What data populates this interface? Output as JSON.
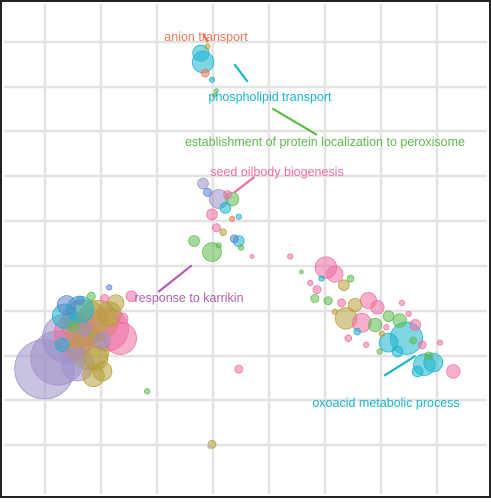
{
  "chart_data": {
    "type": "scatter",
    "title": "",
    "xlabel": "",
    "ylabel": "",
    "grid": true,
    "legend": "none",
    "xlim": [
      0,
      100
    ],
    "ylim": [
      0,
      100
    ],
    "palette": {
      "orange": "#F0785A",
      "pink": "#EE6FA4",
      "cyan": "#19B5CD",
      "green": "#5DBB4C",
      "olive": "#B69E3A",
      "purple": "#9E8FC9",
      "blue": "#5A7FCF",
      "gray": "#BDBDBD"
    },
    "annotations": [
      {
        "text": "anion transport",
        "color": "#F0785A",
        "x": 40.5,
        "y": 97.0,
        "lx": 41.5,
        "ly": 95.0
      },
      {
        "text": "phospholipid transport",
        "color": "#19B5CD",
        "x": 50.5,
        "y": 86.0,
        "lx": 47.5,
        "ly": 90.0
      },
      {
        "text": "establishment of protein localization to peroxisome",
        "color": "#5DBB4C",
        "x": 66.0,
        "y": 74.0,
        "lx": 56.0,
        "ly": 80.0
      },
      {
        "text": "seed oilbody biogenesis",
        "color": "#EE6FA4",
        "x": 52.0,
        "y": 64.5,
        "lx": 47.5,
        "ly": 61.0
      },
      {
        "text": "response to karrikin",
        "color": "#B05FB0",
        "x": 38.0,
        "y": 44.5,
        "lx": 30.5,
        "ly": 38.5
      },
      {
        "text": "oxoacid metabolic process",
        "color": "#19B5CD",
        "x": 81.0,
        "y": 19.5,
        "lx": 88.0,
        "ly": 24.0
      }
    ],
    "points": [
      {
        "x": 5.0,
        "y": 21.0,
        "size": 22,
        "group": "purple"
      },
      {
        "x": 8.0,
        "y": 23.5,
        "size": 20,
        "group": "purple"
      },
      {
        "x": 10.0,
        "y": 28.0,
        "size": 18,
        "group": "purple"
      },
      {
        "x": 12.0,
        "y": 29.0,
        "size": 16,
        "group": "pink"
      },
      {
        "x": 14.0,
        "y": 31.5,
        "size": 17,
        "group": "olive"
      },
      {
        "x": 17.0,
        "y": 32.0,
        "size": 15,
        "group": "olive"
      },
      {
        "x": 19.0,
        "y": 30.0,
        "size": 16,
        "group": "pink"
      },
      {
        "x": 22.0,
        "y": 28.0,
        "size": 12,
        "group": "pink"
      },
      {
        "x": 15.0,
        "y": 25.5,
        "size": 15,
        "group": "olive"
      },
      {
        "x": 12.5,
        "y": 22.0,
        "size": 12,
        "group": "purple"
      },
      {
        "x": 16.5,
        "y": 23.5,
        "size": 9,
        "group": "olive"
      },
      {
        "x": 16.0,
        "y": 19.5,
        "size": 8,
        "group": "olive"
      },
      {
        "x": 18.0,
        "y": 20.5,
        "size": 7,
        "group": "olive"
      },
      {
        "x": 13.0,
        "y": 34.5,
        "size": 10,
        "group": "cyan"
      },
      {
        "x": 10.0,
        "y": 35.5,
        "size": 7,
        "group": "blue"
      },
      {
        "x": 9.5,
        "y": 33.0,
        "size": 9,
        "group": "cyan"
      },
      {
        "x": 19.5,
        "y": 33.5,
        "size": 9,
        "group": "olive"
      },
      {
        "x": 21.0,
        "y": 36.0,
        "size": 6,
        "group": "olive"
      },
      {
        "x": 24.5,
        "y": 37.5,
        "size": 4,
        "group": "pink"
      },
      {
        "x": 22.5,
        "y": 32.5,
        "size": 4,
        "group": "pink"
      },
      {
        "x": 15.5,
        "y": 37.5,
        "size": 3,
        "group": "green"
      },
      {
        "x": 18.5,
        "y": 37.0,
        "size": 3,
        "group": "pink"
      },
      {
        "x": 19.5,
        "y": 39.5,
        "size": 2,
        "group": "blue"
      },
      {
        "x": 14.0,
        "y": 30.0,
        "size": 5,
        "group": "purple"
      },
      {
        "x": 11.5,
        "y": 30.5,
        "size": 4,
        "group": "green"
      },
      {
        "x": 13.0,
        "y": 36.5,
        "size": 3,
        "group": "blue"
      },
      {
        "x": 18.0,
        "y": 27.5,
        "size": 6,
        "group": "purple"
      },
      {
        "x": 9.0,
        "y": 26.5,
        "size": 5,
        "group": "cyan"
      },
      {
        "x": 28.0,
        "y": 16.0,
        "size": 2,
        "group": "green"
      },
      {
        "x": 40.5,
        "y": 90.5,
        "size": 8,
        "group": "cyan"
      },
      {
        "x": 40.0,
        "y": 92.5,
        "size": 6,
        "group": "cyan"
      },
      {
        "x": 41.0,
        "y": 88.0,
        "size": 3,
        "group": "orange"
      },
      {
        "x": 42.5,
        "y": 86.5,
        "size": 2,
        "group": "cyan"
      },
      {
        "x": 41.5,
        "y": 94.0,
        "size": 2,
        "group": "olive"
      },
      {
        "x": 43.0,
        "y": 83.0,
        "size": 1.5,
        "group": "green"
      },
      {
        "x": 43.5,
        "y": 84.0,
        "size": 1.5,
        "group": "green"
      },
      {
        "x": 40.5,
        "y": 63.0,
        "size": 4,
        "group": "purple"
      },
      {
        "x": 41.5,
        "y": 61.0,
        "size": 3,
        "group": "blue"
      },
      {
        "x": 44.0,
        "y": 59.5,
        "size": 7,
        "group": "purple"
      },
      {
        "x": 45.5,
        "y": 57.5,
        "size": 4,
        "group": "cyan"
      },
      {
        "x": 47.0,
        "y": 59.5,
        "size": 5,
        "group": "green"
      },
      {
        "x": 46.0,
        "y": 60.5,
        "size": 3,
        "group": "pink"
      },
      {
        "x": 42.5,
        "y": 56.0,
        "size": 4,
        "group": "pink"
      },
      {
        "x": 43.5,
        "y": 53.0,
        "size": 3,
        "group": "pink"
      },
      {
        "x": 45.0,
        "y": 52.0,
        "size": 2.5,
        "group": "olive"
      },
      {
        "x": 48.5,
        "y": 55.5,
        "size": 2,
        "group": "cyan"
      },
      {
        "x": 47.0,
        "y": 55.0,
        "size": 2,
        "group": "orange"
      },
      {
        "x": 42.5,
        "y": 47.5,
        "size": 7,
        "group": "green"
      },
      {
        "x": 38.5,
        "y": 50.0,
        "size": 4,
        "group": "green"
      },
      {
        "x": 44.0,
        "y": 49.0,
        "size": 2,
        "group": "green"
      },
      {
        "x": 48.5,
        "y": 50.0,
        "size": 4,
        "group": "cyan"
      },
      {
        "x": 47.5,
        "y": 50.5,
        "size": 3,
        "group": "blue"
      },
      {
        "x": 49.0,
        "y": 48.5,
        "size": 2,
        "group": "green"
      },
      {
        "x": 51.5,
        "y": 46.5,
        "size": 1.5,
        "group": "pink"
      },
      {
        "x": 48.5,
        "y": 21.0,
        "size": 3,
        "group": "pink"
      },
      {
        "x": 42.5,
        "y": 4.0,
        "size": 3,
        "group": "olive"
      },
      {
        "x": 42.0,
        "y": 3.5,
        "size": 1.5,
        "group": "gray"
      },
      {
        "x": 60.0,
        "y": 46.5,
        "size": 2,
        "group": "pink"
      },
      {
        "x": 62.5,
        "y": 43.0,
        "size": 1.5,
        "group": "green"
      },
      {
        "x": 64.5,
        "y": 40.5,
        "size": 2,
        "group": "pink"
      },
      {
        "x": 66.0,
        "y": 39.0,
        "size": 3,
        "group": "pink"
      },
      {
        "x": 68.0,
        "y": 44.0,
        "size": 8,
        "group": "pink"
      },
      {
        "x": 70.0,
        "y": 42.5,
        "size": 6,
        "group": "pink"
      },
      {
        "x": 72.0,
        "y": 40.0,
        "size": 4,
        "group": "olive"
      },
      {
        "x": 73.5,
        "y": 41.5,
        "size": 2.5,
        "group": "green"
      },
      {
        "x": 65.5,
        "y": 37.0,
        "size": 3,
        "group": "green"
      },
      {
        "x": 68.5,
        "y": 36.5,
        "size": 3,
        "group": "green"
      },
      {
        "x": 71.5,
        "y": 36.0,
        "size": 3,
        "group": "pink"
      },
      {
        "x": 74.5,
        "y": 35.5,
        "size": 5,
        "group": "olive"
      },
      {
        "x": 77.5,
        "y": 36.5,
        "size": 6,
        "group": "pink"
      },
      {
        "x": 79.5,
        "y": 35.0,
        "size": 5,
        "group": "pink"
      },
      {
        "x": 72.5,
        "y": 32.5,
        "size": 8,
        "group": "olive"
      },
      {
        "x": 76.0,
        "y": 31.5,
        "size": 7,
        "group": "pink"
      },
      {
        "x": 79.0,
        "y": 31.0,
        "size": 5,
        "group": "green"
      },
      {
        "x": 82.0,
        "y": 33.0,
        "size": 4,
        "group": "green"
      },
      {
        "x": 84.5,
        "y": 32.0,
        "size": 5,
        "group": "green"
      },
      {
        "x": 86.0,
        "y": 28.0,
        "size": 12,
        "group": "cyan"
      },
      {
        "x": 82.0,
        "y": 27.0,
        "size": 7,
        "group": "cyan"
      },
      {
        "x": 84.0,
        "y": 25.0,
        "size": 4,
        "group": "cyan"
      },
      {
        "x": 88.0,
        "y": 31.0,
        "size": 4,
        "group": "pink"
      },
      {
        "x": 89.5,
        "y": 26.5,
        "size": 3,
        "group": "pink"
      },
      {
        "x": 91.0,
        "y": 24.0,
        "size": 3,
        "group": "green"
      },
      {
        "x": 90.0,
        "y": 22.0,
        "size": 8,
        "group": "cyan"
      },
      {
        "x": 92.0,
        "y": 22.5,
        "size": 7,
        "group": "cyan"
      },
      {
        "x": 88.5,
        "y": 20.5,
        "size": 4,
        "group": "cyan"
      },
      {
        "x": 96.5,
        "y": 20.5,
        "size": 5,
        "group": "pink"
      },
      {
        "x": 93.5,
        "y": 27.0,
        "size": 2,
        "group": "pink"
      },
      {
        "x": 87.5,
        "y": 27.5,
        "size": 2.5,
        "group": "green"
      },
      {
        "x": 80.5,
        "y": 29.0,
        "size": 2,
        "group": "olive"
      },
      {
        "x": 75.0,
        "y": 29.5,
        "size": 2.5,
        "group": "cyan"
      },
      {
        "x": 70.0,
        "y": 34.0,
        "size": 2,
        "group": "olive"
      },
      {
        "x": 73.0,
        "y": 28.0,
        "size": 2.5,
        "group": "pink"
      },
      {
        "x": 77.0,
        "y": 26.5,
        "size": 2,
        "group": "pink"
      },
      {
        "x": 85.0,
        "y": 36.0,
        "size": 2,
        "group": "pink"
      },
      {
        "x": 86.5,
        "y": 33.5,
        "size": 2,
        "group": "pink"
      },
      {
        "x": 81.5,
        "y": 30.5,
        "size": 2,
        "group": "pink"
      },
      {
        "x": 80.0,
        "y": 25.0,
        "size": 2,
        "group": "green"
      },
      {
        "x": 67.0,
        "y": 41.5,
        "size": 2,
        "group": "cyan"
      }
    ]
  }
}
